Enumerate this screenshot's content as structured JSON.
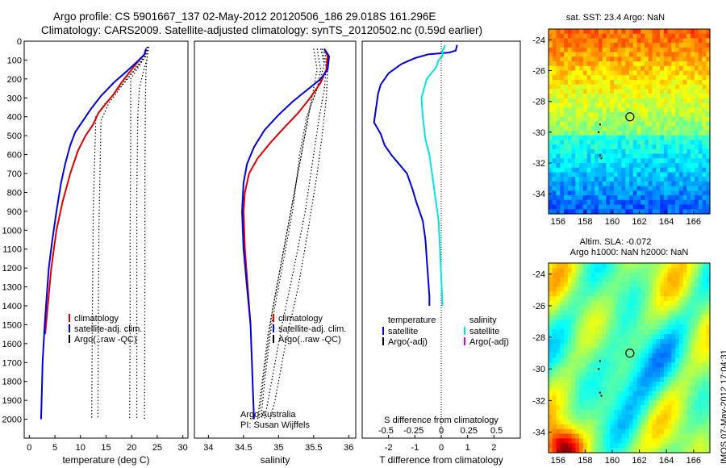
{
  "header": {
    "line1": "Argo profile: CS 5901667_137 02-May-2012 20120506_186 29.018S 161.296E",
    "line2": "Climatology: CARS2009. Satellite-adjusted climatology: synTS_20120502.nc (0.59d earlier)"
  },
  "side_label": "IMOS 07-May-2012 17:04:31",
  "chart_data": [
    {
      "type": "line",
      "panel": "temperature",
      "xlabel": "temperature (deg C)",
      "xlim": [
        -1,
        31
      ],
      "ylim": [
        2100,
        0
      ],
      "xticks": [
        0,
        5,
        10,
        15,
        20,
        25,
        30
      ],
      "yticks": [
        0,
        100,
        200,
        300,
        400,
        500,
        600,
        700,
        800,
        900,
        1000,
        1100,
        1200,
        1300,
        1400,
        1500,
        1600,
        1700,
        1800,
        1900,
        2000
      ],
      "legend": [
        "climatology",
        "satellite-adj. clim.",
        "Argo(..raw -QC)"
      ],
      "legend_colors": [
        "#dd0000",
        "#0000dd",
        "#000000"
      ],
      "series": [
        {
          "name": "climatology",
          "color": "#dd0000",
          "points": [
            [
              22.8,
              40
            ],
            [
              22.5,
              70
            ],
            [
              21.5,
              100
            ],
            [
              20,
              150
            ],
            [
              18,
              220
            ],
            [
              16.5,
              280
            ],
            [
              15,
              330
            ],
            [
              13.5,
              380
            ],
            [
              12.5,
              440
            ],
            [
              11,
              500
            ],
            [
              9.5,
              580
            ],
            [
              8,
              700
            ],
            [
              6.5,
              850
            ],
            [
              5.3,
              1000
            ],
            [
              4.3,
              1200
            ],
            [
              3.6,
              1400
            ],
            [
              3.1,
              1550
            ]
          ]
        },
        {
          "name": "satellite-adj. clim.",
          "color": "#0000dd",
          "points": [
            [
              22.8,
              40
            ],
            [
              22.5,
              70
            ],
            [
              21,
              110
            ],
            [
              19,
              160
            ],
            [
              16.5,
              220
            ],
            [
              14,
              290
            ],
            [
              12,
              360
            ],
            [
              10.5,
              420
            ],
            [
              9,
              480
            ],
            [
              8,
              550
            ],
            [
              7,
              650
            ],
            [
              6.2,
              750
            ],
            [
              5.3,
              900
            ],
            [
              4.5,
              1050
            ],
            [
              3.8,
              1200
            ],
            [
              3.4,
              1350
            ],
            [
              3,
              1500
            ],
            [
              2.6,
              1700
            ],
            [
              2.4,
              1900
            ],
            [
              2.3,
              2000
            ]
          ]
        }
      ],
      "dotted_series": [
        [
          [
            23,
            30
          ],
          [
            22.5,
            80
          ],
          [
            20.5,
            150
          ],
          [
            17.5,
            250
          ],
          [
            14.5,
            340
          ],
          [
            13,
            400
          ],
          [
            12.8,
            600
          ],
          [
            12.5,
            900
          ],
          [
            12.4,
            1200
          ],
          [
            12.3,
            1500
          ],
          [
            12.2,
            2000
          ]
        ],
        [
          [
            23.2,
            30
          ],
          [
            22.8,
            80
          ],
          [
            21,
            140
          ],
          [
            18,
            240
          ],
          [
            15.5,
            330
          ],
          [
            14,
            420
          ],
          [
            13.8,
            700
          ],
          [
            13.6,
            1000
          ],
          [
            13.5,
            1400
          ],
          [
            13.4,
            2000
          ]
        ],
        [
          [
            23,
            30
          ],
          [
            22.6,
            80
          ],
          [
            21.5,
            130
          ],
          [
            19.8,
            200
          ],
          [
            19.8,
            600
          ],
          [
            19.7,
            1000
          ],
          [
            19.7,
            1500
          ],
          [
            19.6,
            2000
          ]
        ],
        [
          [
            23.3,
            30
          ],
          [
            23,
            90
          ],
          [
            22.4,
            150
          ],
          [
            21.5,
            250
          ],
          [
            21.2,
            400
          ],
          [
            21,
            800
          ],
          [
            21,
            1300
          ],
          [
            21,
            2000
          ]
        ],
        [
          [
            23.3,
            30
          ],
          [
            23,
            90
          ],
          [
            22.8,
            150
          ],
          [
            22.7,
            300
          ],
          [
            22.6,
            700
          ],
          [
            22.6,
            1200
          ],
          [
            22.5,
            2000
          ]
        ]
      ]
    },
    {
      "type": "line",
      "panel": "salinity",
      "xlabel": "salinity",
      "xlim": [
        33.8,
        36.1
      ],
      "ylim": [
        2100,
        0
      ],
      "xticks": [
        34,
        34.5,
        35,
        35.5,
        36
      ],
      "legend": [
        "climatology",
        "satellite-adj. clim.",
        "Argo(..raw -QC)"
      ],
      "legend_colors": [
        "#dd0000",
        "#0000dd",
        "#000000"
      ],
      "credits": [
        "Argo Australia",
        "PI: Susan Wijffels"
      ],
      "series": [
        {
          "name": "climatology",
          "color": "#dd0000",
          "points": [
            [
              35.65,
              40
            ],
            [
              35.7,
              80
            ],
            [
              35.68,
              150
            ],
            [
              35.6,
              220
            ],
            [
              35.45,
              300
            ],
            [
              35.28,
              380
            ],
            [
              35.1,
              450
            ],
            [
              34.9,
              530
            ],
            [
              34.7,
              620
            ],
            [
              34.58,
              700
            ],
            [
              34.52,
              800
            ],
            [
              34.5,
              900
            ],
            [
              34.52,
              1100
            ],
            [
              34.56,
              1300
            ],
            [
              34.6,
              1500
            ]
          ]
        },
        {
          "name": "satellite-adj. clim.",
          "color": "#0000dd",
          "points": [
            [
              35.65,
              40
            ],
            [
              35.72,
              80
            ],
            [
              35.7,
              150
            ],
            [
              35.6,
              200
            ],
            [
              35.4,
              260
            ],
            [
              35.2,
              320
            ],
            [
              35,
              390
            ],
            [
              34.8,
              470
            ],
            [
              34.65,
              560
            ],
            [
              34.55,
              650
            ],
            [
              34.5,
              750
            ],
            [
              34.48,
              900
            ],
            [
              34.5,
              1100
            ],
            [
              34.55,
              1300
            ],
            [
              34.6,
              1500
            ],
            [
              34.62,
              1700
            ],
            [
              34.64,
              1900
            ],
            [
              34.65,
              2000
            ]
          ]
        }
      ],
      "dotted_series": [
        [
          [
            35.6,
            40
          ],
          [
            35.65,
            120
          ],
          [
            35.6,
            200
          ],
          [
            35.5,
            300
          ],
          [
            35.4,
            400
          ],
          [
            35.3,
            600
          ],
          [
            35.2,
            900
          ],
          [
            35.05,
            1200
          ],
          [
            34.9,
            1500
          ],
          [
            34.8,
            1800
          ],
          [
            34.75,
            2000
          ]
        ],
        [
          [
            35.55,
            40
          ],
          [
            35.6,
            150
          ],
          [
            35.55,
            250
          ],
          [
            35.45,
            350
          ],
          [
            35.35,
            550
          ],
          [
            35.2,
            850
          ],
          [
            35.05,
            1150
          ],
          [
            34.9,
            1450
          ],
          [
            34.78,
            1800
          ],
          [
            34.72,
            2000
          ]
        ],
        [
          [
            35.5,
            40
          ],
          [
            35.55,
            150
          ],
          [
            35.5,
            250
          ],
          [
            35.42,
            400
          ],
          [
            35.3,
            650
          ],
          [
            35.15,
            950
          ],
          [
            35,
            1250
          ],
          [
            34.85,
            1550
          ],
          [
            34.75,
            1850
          ],
          [
            34.7,
            2000
          ]
        ],
        [
          [
            35.62,
            40
          ],
          [
            35.68,
            140
          ],
          [
            35.65,
            260
          ],
          [
            35.58,
            400
          ],
          [
            35.5,
            600
          ],
          [
            35.38,
            900
          ],
          [
            35.22,
            1200
          ],
          [
            35.05,
            1500
          ],
          [
            34.9,
            1800
          ],
          [
            34.8,
            2000
          ]
        ],
        [
          [
            35.65,
            40
          ],
          [
            35.7,
            150
          ],
          [
            35.68,
            300
          ],
          [
            35.62,
            500
          ],
          [
            35.55,
            700
          ],
          [
            35.42,
            1000
          ],
          [
            35.28,
            1300
          ],
          [
            35.1,
            1600
          ],
          [
            34.95,
            1900
          ],
          [
            34.88,
            2000
          ]
        ]
      ]
    },
    {
      "type": "line",
      "panel": "difference",
      "xlabel_T": "T difference from climatology",
      "xlabel_S": "S difference from climatology",
      "xlim_T": [
        -3,
        3
      ],
      "xticks_T": [
        -2,
        -1,
        0,
        1,
        2
      ],
      "xticks_S": [
        "-0.5",
        "-0.25",
        "0",
        "0.25",
        "0.5"
      ],
      "ylim": [
        2100,
        0
      ],
      "legend": {
        "col1_title": "temperature",
        "col2_title": "salinity",
        "items": [
          {
            "label": "satellite",
            "color": "#0000dd",
            "col": 1
          },
          {
            "label": "Argo(-adj)",
            "color": "#000000",
            "col": 1
          },
          {
            "label": "satellite",
            "color": "#00e5e5",
            "col": 2
          },
          {
            "label": "Argo(-adj)",
            "color": "#dd00dd",
            "col": 2
          }
        ]
      },
      "series": [
        {
          "name": "temperature satellite",
          "color": "#0000dd",
          "points": [
            [
              0.6,
              20
            ],
            [
              0.55,
              50
            ],
            [
              0.3,
              60
            ],
            [
              -0.5,
              70
            ],
            [
              -1,
              90
            ],
            [
              -1.5,
              120
            ],
            [
              -2,
              170
            ],
            [
              -2.3,
              230
            ],
            [
              -2.4,
              280
            ],
            [
              -2.45,
              330
            ],
            [
              -2.5,
              380
            ],
            [
              -2.55,
              430
            ],
            [
              -2.3,
              490
            ],
            [
              -2.15,
              550
            ],
            [
              -1.9,
              600
            ],
            [
              -1.6,
              650
            ],
            [
              -1.3,
              700
            ],
            [
              -1.1,
              780
            ],
            [
              -0.95,
              850
            ],
            [
              -0.7,
              950
            ],
            [
              -0.6,
              1050
            ],
            [
              -0.55,
              1150
            ],
            [
              -0.5,
              1250
            ],
            [
              -0.45,
              1350
            ],
            [
              -0.45,
              1400
            ]
          ]
        },
        {
          "name": "salinity satellite",
          "color": "#00e5e5",
          "points": [
            [
              0.15,
              20
            ],
            [
              0.05,
              50
            ],
            [
              0.05,
              80
            ],
            [
              -0.1,
              100
            ],
            [
              -0.2,
              140
            ],
            [
              -0.55,
              200
            ],
            [
              -0.75,
              300
            ],
            [
              -0.7,
              400
            ],
            [
              -0.6,
              520
            ],
            [
              -0.45,
              600
            ],
            [
              -0.35,
              700
            ],
            [
              -0.25,
              800
            ],
            [
              -0.1,
              950
            ],
            [
              -0.05,
              1100
            ],
            [
              0,
              1250
            ],
            [
              0.05,
              1400
            ]
          ]
        }
      ]
    }
  ],
  "maps": [
    {
      "title": "sat. SST: 23.4  Argo: NaN",
      "xticks": [
        "156",
        "158",
        "160",
        "162",
        "164",
        "166"
      ],
      "yticks": [
        "-24",
        "-26",
        "-28",
        "-30",
        "-32",
        "-34"
      ],
      "marker": {
        "lon": 161.3,
        "lat": -29.0
      }
    },
    {
      "title": "Altim. SLA: -0.072",
      "subtitle": "Argo h1000: NaN h2000: NaN",
      "xticks": [
        "156",
        "158",
        "160",
        "162",
        "164",
        "166"
      ],
      "yticks": [
        "-24",
        "-26",
        "-28",
        "-30",
        "-32",
        "-34"
      ],
      "marker": {
        "lon": 161.3,
        "lat": -29.0
      }
    }
  ]
}
